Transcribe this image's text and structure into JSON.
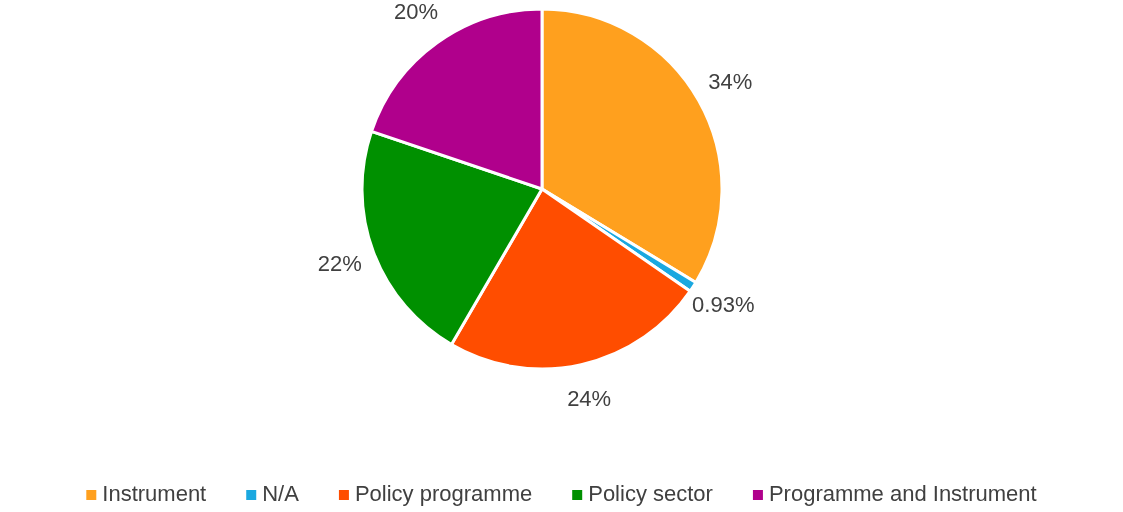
{
  "chart_data": {
    "type": "pie",
    "categories": [
      "Instrument",
      "N/A",
      "Policy programme",
      "Policy sector",
      "Programme and Instrument"
    ],
    "values": [
      34,
      0.93,
      24,
      22,
      20
    ],
    "colors": [
      "#ffa01e",
      "#1aa8e0",
      "#ff4d00",
      "#009000",
      "#b0008c"
    ],
    "value_labels": [
      "34%",
      "0.93%",
      "24%",
      "22%",
      "20%"
    ],
    "legend": "bottom"
  }
}
